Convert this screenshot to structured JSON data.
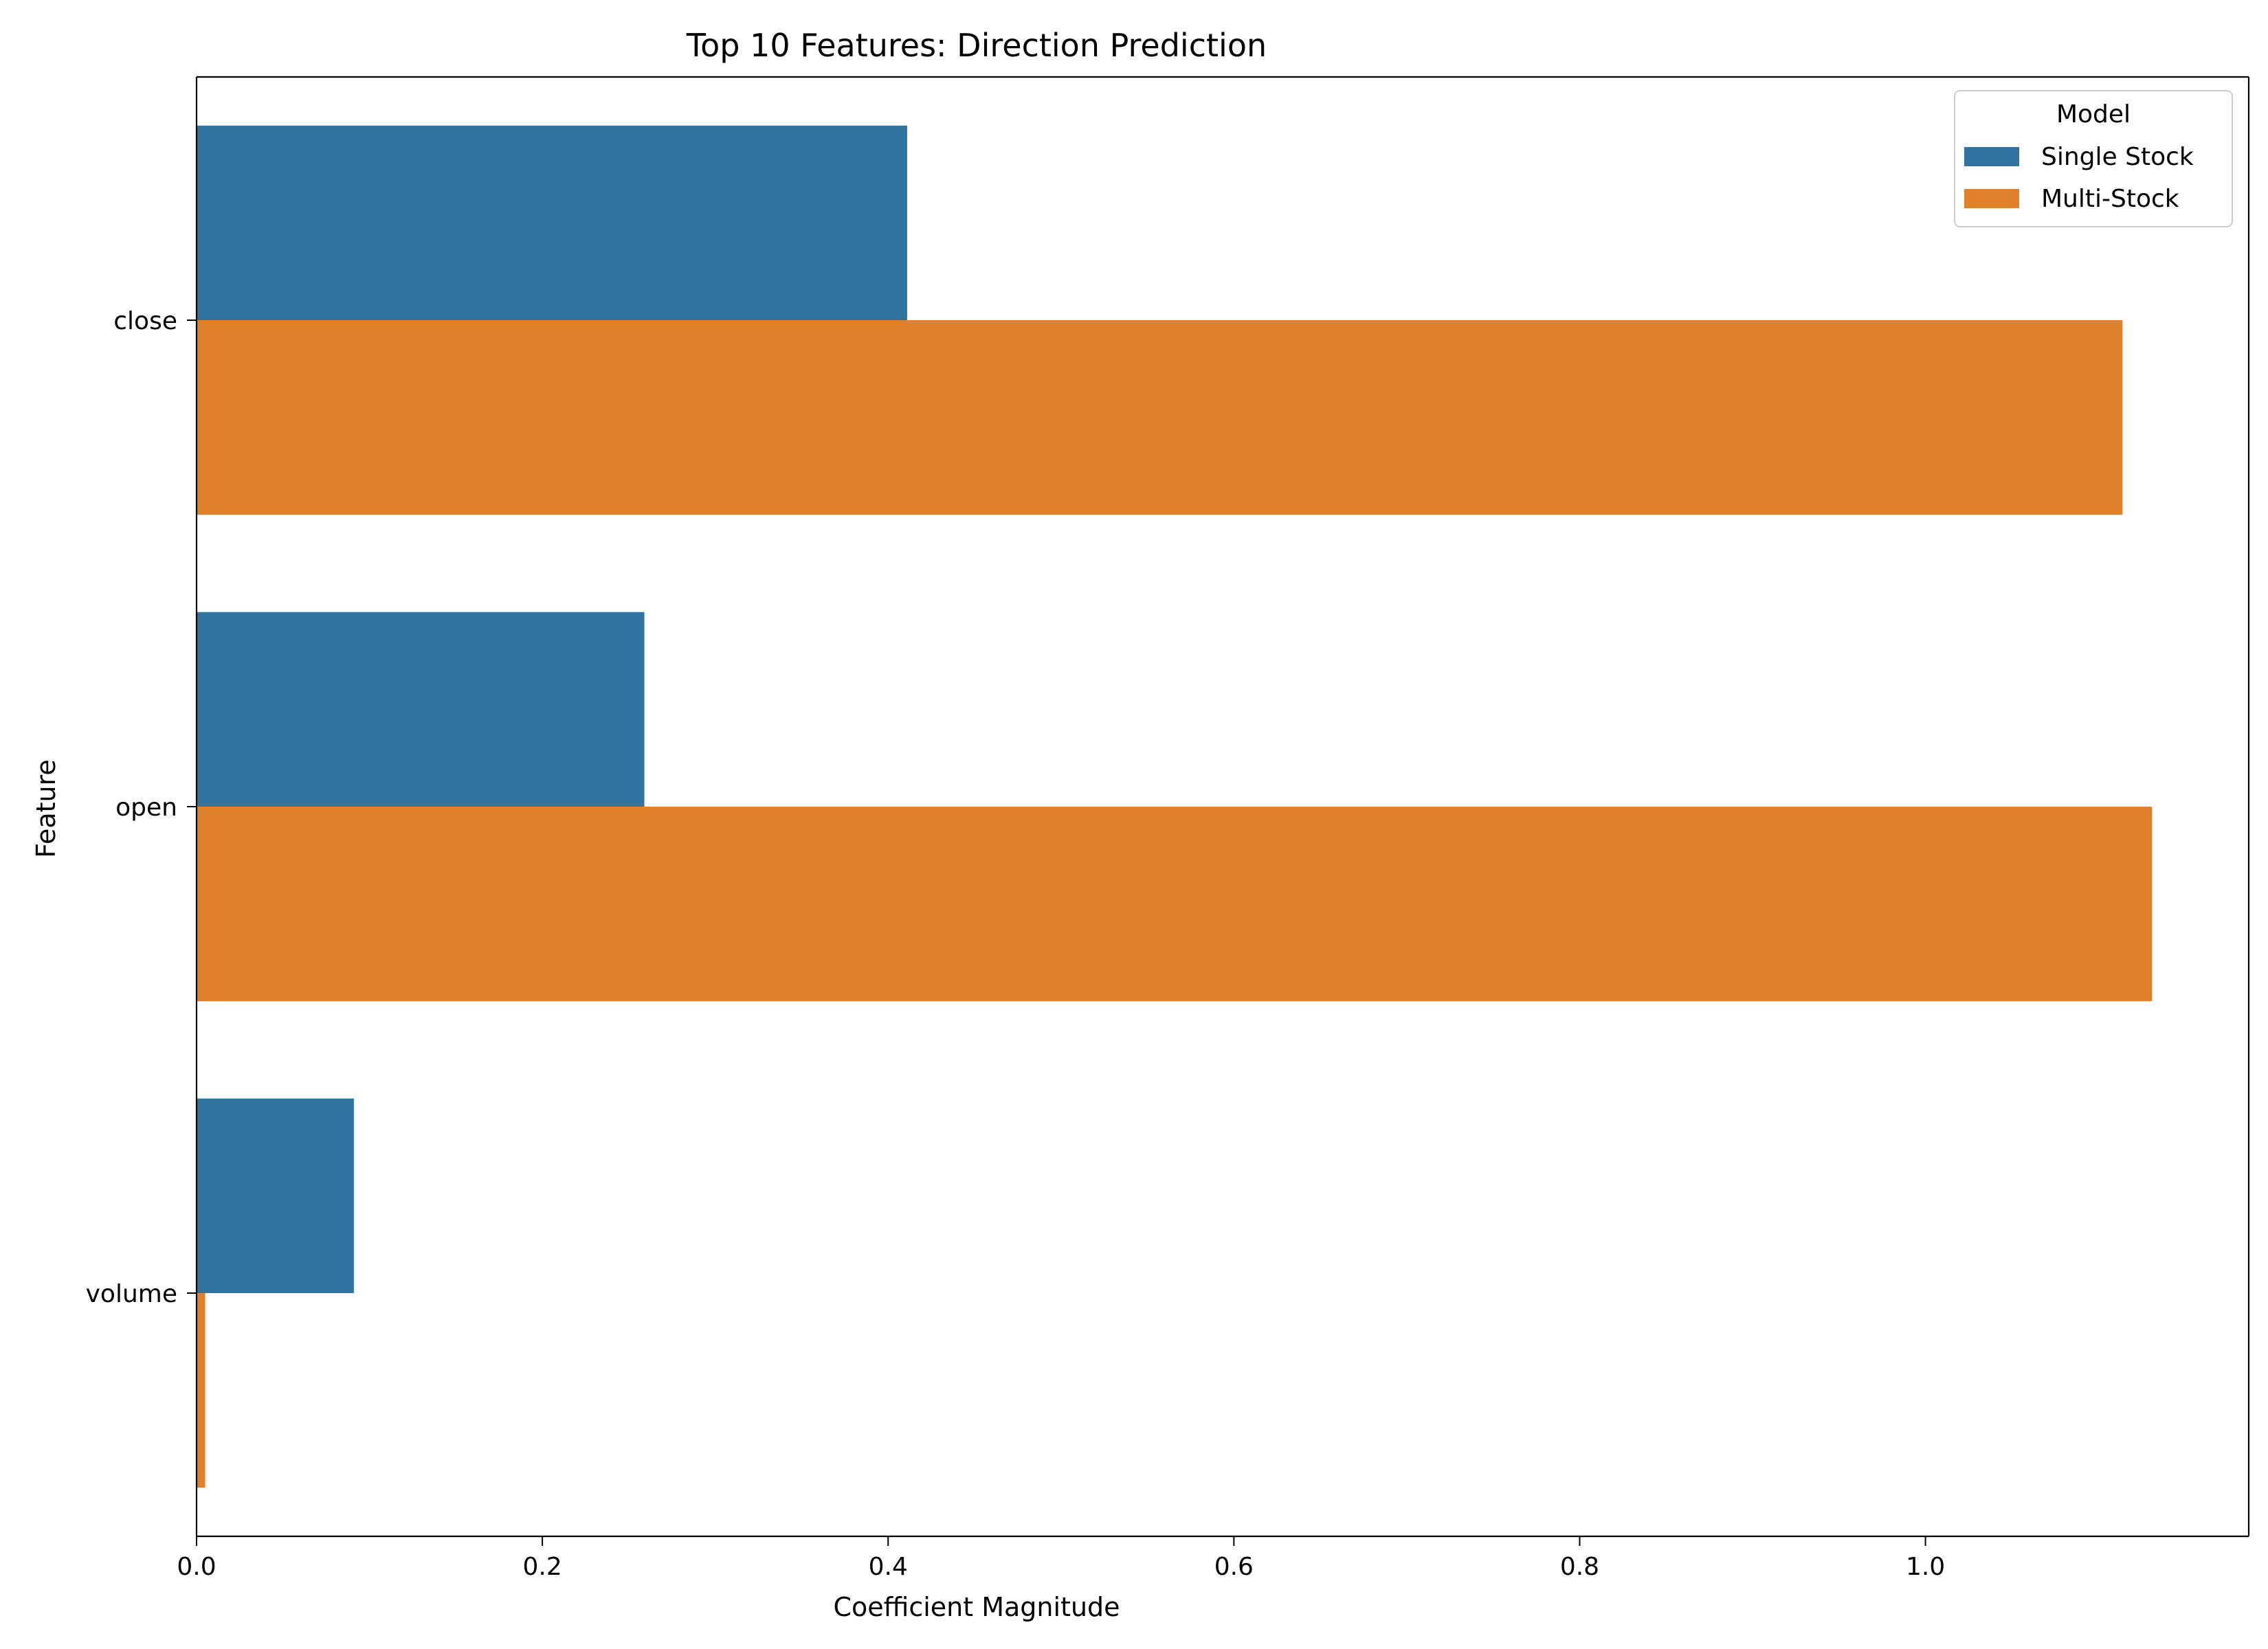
{
  "chart_data": {
    "type": "bar",
    "orientation": "horizontal",
    "title": "Top 10 Features: Direction Prediction",
    "xlabel": "Coefficient Magnitude",
    "ylabel": "Feature",
    "categories": [
      "close",
      "open",
      "volume"
    ],
    "series": [
      {
        "name": "Single Stock",
        "values": [
          0.411,
          0.259,
          0.091
        ],
        "color": "#3274a1"
      },
      {
        "name": "Multi-Stock",
        "values": [
          1.114,
          1.131,
          0.005
        ],
        "color": "#e1812c"
      }
    ],
    "xlim": [
      0,
      1.187
    ],
    "xticks": [
      0.0,
      0.2,
      0.4,
      0.6,
      0.8,
      1.0
    ],
    "xtick_labels": [
      "0.0",
      "0.2",
      "0.4",
      "0.6",
      "0.8",
      "1.0"
    ],
    "grid": false,
    "legend": {
      "title": "Model",
      "placement": "top-right"
    }
  }
}
